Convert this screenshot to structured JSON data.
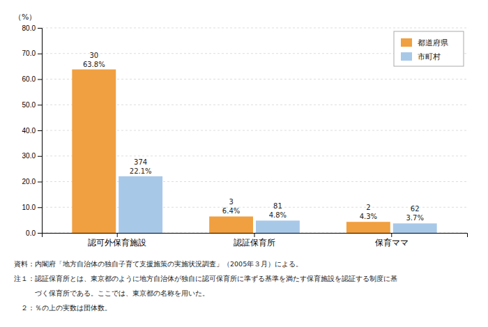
{
  "chart_data": {
    "type": "bar",
    "ylabel": "（%）",
    "categories": [
      "認可外保育施設",
      "認証保育所",
      "保育ママ"
    ],
    "series": [
      {
        "name": "都道府県",
        "color": "#F0A040",
        "values": [
          63.8,
          6.4,
          4.3
        ],
        "value_labels": [
          "63.8%",
          "6.4%",
          "4.3%"
        ],
        "counts": [
          30,
          3,
          2
        ]
      },
      {
        "name": "市町村",
        "color": "#A8C8E8",
        "values": [
          22.1,
          4.8,
          3.7
        ],
        "value_labels": [
          "22.1%",
          "4.8%",
          "3.7%"
        ],
        "counts": [
          374,
          81,
          62
        ]
      }
    ],
    "ylim": [
      0,
      80
    ],
    "yticks": [
      {
        "value": 0,
        "label": "0.0"
      },
      {
        "value": 10,
        "label": "10.0"
      },
      {
        "value": 20,
        "label": "20.0"
      },
      {
        "value": 30,
        "label": "30.0"
      },
      {
        "value": 40,
        "label": "40.0"
      },
      {
        "value": 50,
        "label": "50.0"
      },
      {
        "value": 60,
        "label": "60.0"
      },
      {
        "value": 70,
        "label": "70.0"
      },
      {
        "value": 80,
        "label": "80.0"
      }
    ],
    "grid": true,
    "legend": "upper right",
    "data_labels": true,
    "notes": [
      "資料：内閣府「地方自治体の独自子育て支援施策の実施状況調査」（2005年３月）による。",
      "注１：認証保育所とは、東京都のように地方自治体が独自に認可保育所に準ずる基準を満たす保育施設を認証する制度に基",
      "　　　づく保育所である。ここでは、東京都の名称を用いた。",
      "　２：％の上の実数は団体数。"
    ]
  }
}
